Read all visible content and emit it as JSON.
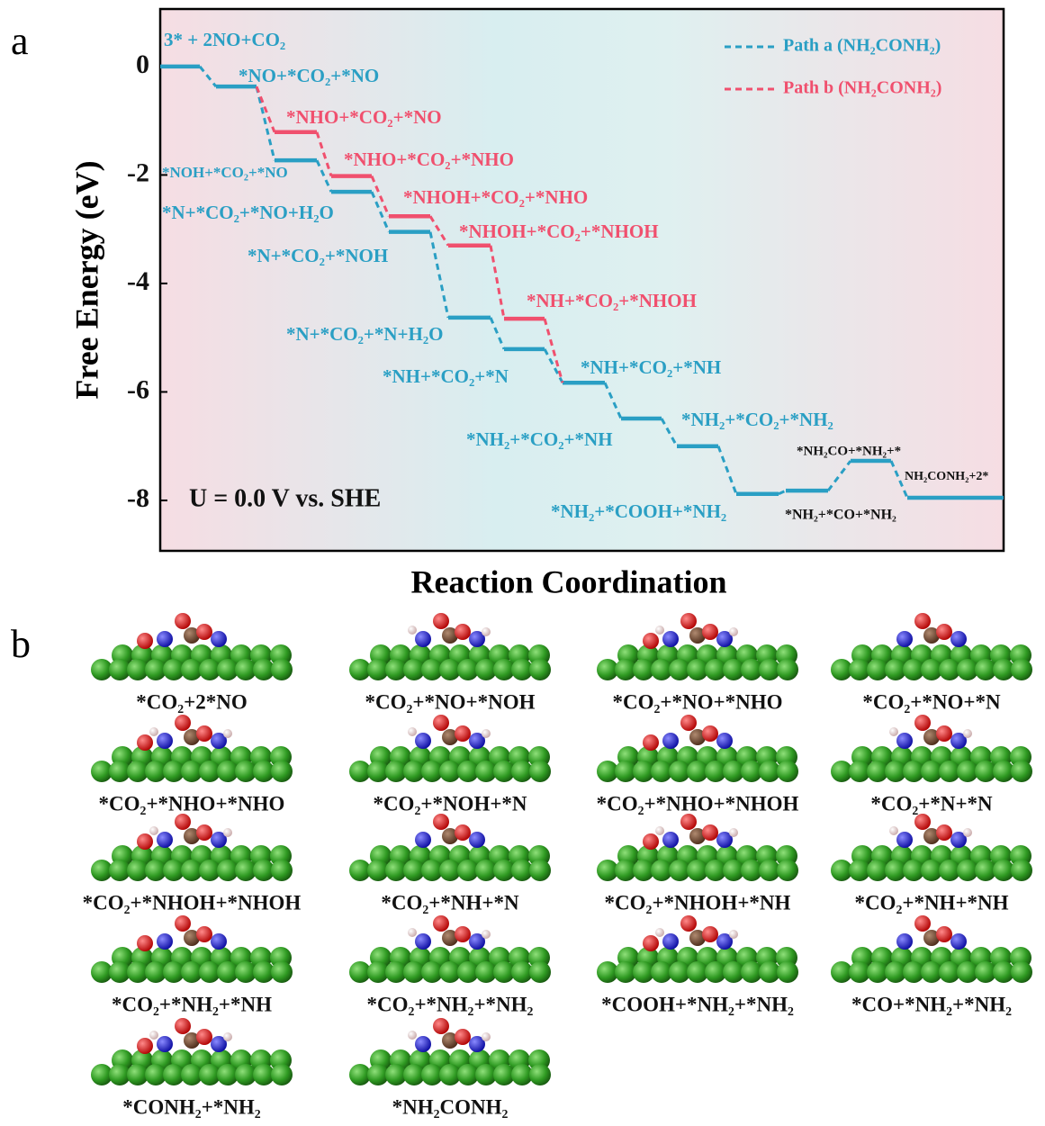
{
  "panel_labels": [
    "a",
    "b"
  ],
  "chart_data": {
    "type": "energy_levels",
    "y_label": "Free Energy (eV)",
    "x_label": "Reaction Coordination",
    "annotation": "U = 0.0 V vs. SHE",
    "ylim": [
      -8.93,
      1.06
    ],
    "yticks": [
      0,
      -2,
      -4,
      -6,
      -8
    ],
    "legend": "top-right",
    "series": [
      {
        "name": "Path a (NH₂CONH₂)",
        "color": "#2a9fc4",
        "values": [
          0,
          -0.37,
          -1.73,
          -2.31,
          -3.05,
          -4.63,
          -5.21,
          -5.83,
          -6.49,
          -7.0,
          -7.88,
          -7.82,
          -7.27,
          -7.95
        ],
        "labels": [
          "3* + 2NO+CO₂",
          "*NO+*CO₂+*NO",
          "*NOH+*CO₂+*NO",
          "*N+*CO₂+*NO+H₂O",
          "*N+*CO₂+*NOH",
          "*N+*CO₂+*N+H₂O",
          "*NH+*CO₂+*N",
          "*NH+*CO₂+*NH",
          "*NH₂+*CO₂+*NH",
          "*NH₂+*CO₂+*NH₂",
          "*NH₂+*COOH+*NH₂",
          "*NH₂+*CO+*NH₂",
          "*NH₂CO+*NH₂+*",
          "NH₂CONH₂+2*"
        ],
        "label_colors": [
          "#2a9fc4",
          "#2a9fc4",
          "#2a9fc4",
          "#2a9fc4",
          "#2a9fc4",
          "#2a9fc4",
          "#2a9fc4",
          "#2a9fc4",
          "#2a9fc4",
          "#2a9fc4",
          "#2a9fc4",
          "#111111",
          "#111111",
          "#111111"
        ]
      },
      {
        "name": "Path b (NH₂CONH₂)",
        "color": "#f0506e",
        "values": [
          null,
          null,
          -1.21,
          -2.02,
          -2.76,
          -3.3,
          -4.65,
          null,
          null,
          null,
          null,
          null,
          null,
          null
        ],
        "labels": [
          null,
          null,
          "*NHO+*CO₂+*NO",
          "*NHO+*CO₂+*NHO",
          "*NHOH+*CO₂+*NHO",
          "*NHOH+*CO₂+*NHOH",
          "*NH+*CO₂+*NHOH",
          null,
          null,
          null,
          null,
          null,
          null,
          null
        ]
      }
    ]
  },
  "structures": [
    "*CO₂+2*NO",
    "*CO₂+*NO+*NOH",
    "*CO₂+*NO+*NHO",
    "*CO₂+*NO+*N",
    "*CO₂+*NHO+*NHO",
    "*CO₂+*NOH+*N",
    "*CO₂+*NHO+*NHOH",
    "*CO₂+*N+*N",
    "*CO₂+*NHOH+*NHOH",
    "*CO₂+*NH+*N",
    "*CO₂+*NHOH+*NH",
    "*CO₂+*NH+*NH",
    "*CO₂+*NH₂+*NH",
    "*CO₂+*NH₂+*NH₂",
    "*COOH+*NH₂+*NH₂",
    "*CO+*NH₂+*NH₂",
    "*CONH₂+*NH₂",
    "*NH₂CONH₂"
  ]
}
